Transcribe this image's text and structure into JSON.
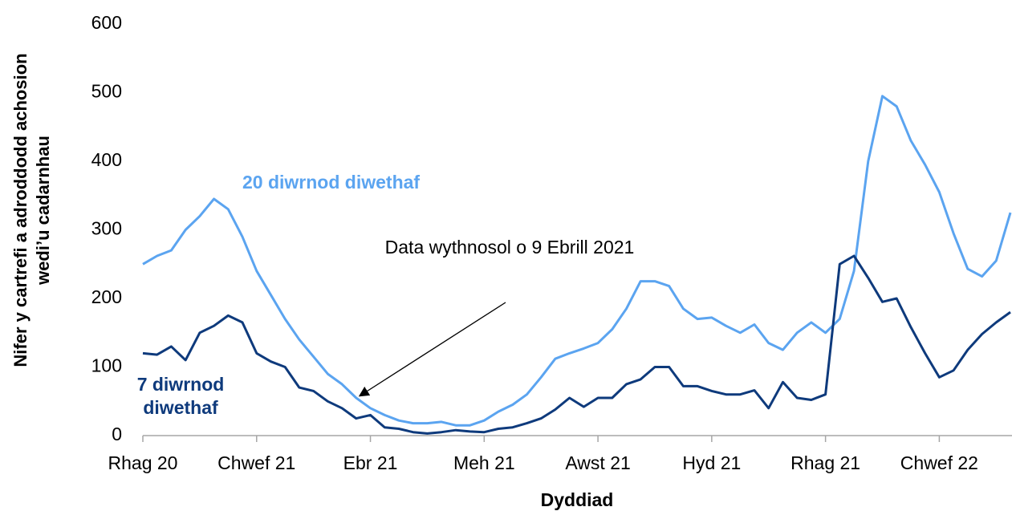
{
  "chart_data": {
    "type": "line",
    "y_label": "Nifer y cartrefi a adroddodd achosion wedi’u cadarnhau",
    "x_label": "Dyddiad",
    "annotation": "Data wythnosol o 9 Ebrill 2021",
    "categories": [
      "Rhag 20",
      null,
      null,
      null,
      null,
      null,
      null,
      null,
      "Chwef 21",
      null,
      null,
      null,
      null,
      null,
      null,
      null,
      "Ebr 21",
      null,
      null,
      null,
      null,
      null,
      null,
      null,
      "Meh 21",
      null,
      null,
      null,
      null,
      null,
      null,
      null,
      "Awst 21",
      null,
      null,
      null,
      null,
      null,
      null,
      null,
      "Hyd 21",
      null,
      null,
      null,
      null,
      null,
      null,
      null,
      "Rhag 21",
      null,
      null,
      null,
      null,
      null,
      null,
      null,
      "Chwef 22",
      null,
      null,
      null,
      null,
      null
    ],
    "series": [
      {
        "name": "20 diwrnod diwethaf",
        "color": "#5ba4f0",
        "values": [
          250,
          262,
          270,
          300,
          320,
          345,
          330,
          290,
          240,
          205,
          170,
          140,
          115,
          90,
          75,
          55,
          40,
          30,
          22,
          18,
          18,
          20,
          15,
          15,
          22,
          35,
          45,
          60,
          85,
          112,
          120,
          127,
          135,
          155,
          185,
          225,
          225,
          218,
          185,
          170,
          172,
          160,
          150,
          162,
          135,
          125,
          150,
          165,
          150,
          170,
          240,
          400,
          495,
          480,
          430,
          395,
          355,
          295,
          243,
          232,
          255,
          325
        ]
      },
      {
        "name": "7 diwrnod diwethaf",
        "color": "#0e3a7c",
        "values": [
          120,
          118,
          130,
          110,
          150,
          160,
          175,
          165,
          120,
          108,
          100,
          70,
          65,
          50,
          40,
          25,
          30,
          12,
          10,
          5,
          3,
          5,
          8,
          6,
          5,
          10,
          12,
          18,
          25,
          38,
          55,
          42,
          55,
          55,
          75,
          82,
          100,
          100,
          72,
          72,
          65,
          60,
          60,
          66,
          40,
          78,
          55,
          52,
          60,
          250,
          262,
          230,
          195,
          200,
          158,
          120,
          85,
          95,
          125,
          148,
          165,
          180
        ]
      }
    ],
    "ylim": [
      0,
      600
    ],
    "yticks": [
      0,
      100,
      200,
      300,
      400,
      500,
      600
    ],
    "grid": false
  }
}
